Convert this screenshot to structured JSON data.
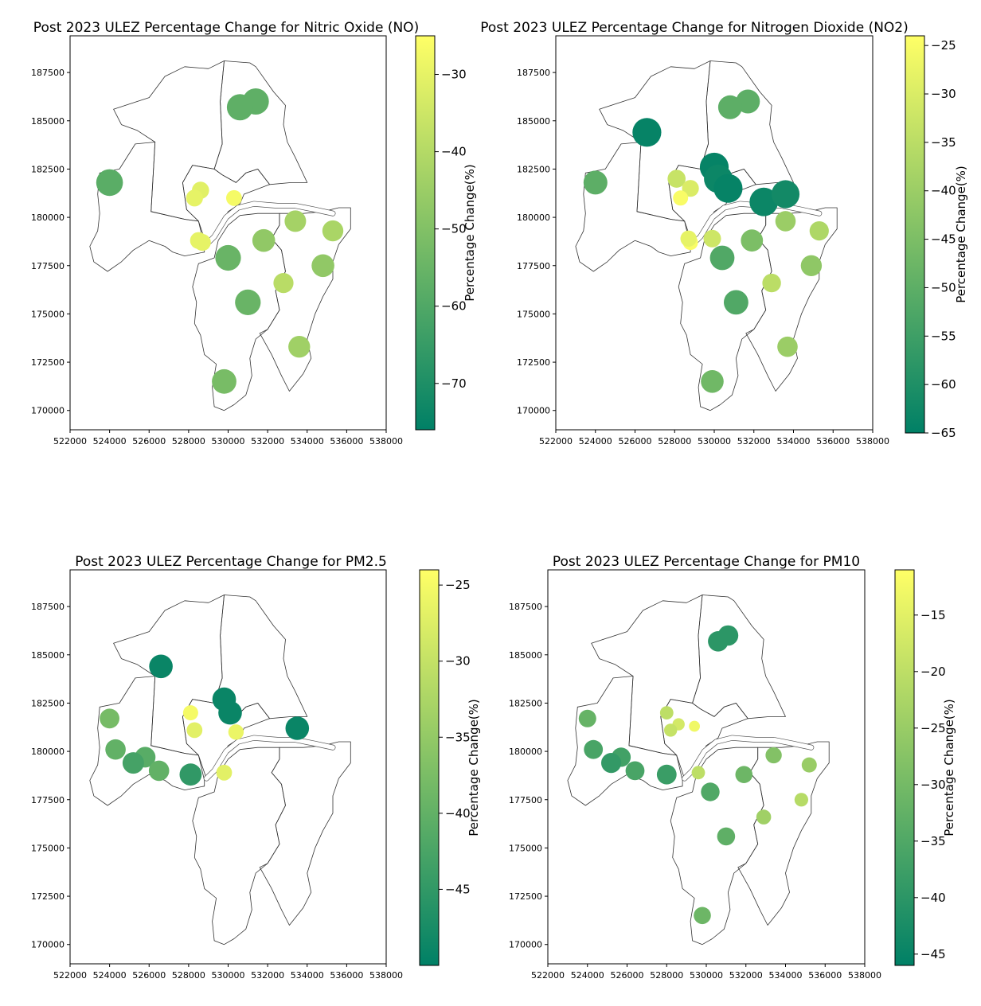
{
  "chart_data": [
    {
      "type": "scatter",
      "title": "Post 2023 ULEZ Percentage Change for Nitric Oxide (NO)",
      "xlabel": "",
      "ylabel": "",
      "xlim": [
        522000,
        538000
      ],
      "ylim": [
        169000,
        189400
      ],
      "xticks": [
        522000,
        524000,
        526000,
        528000,
        530000,
        532000,
        534000,
        536000,
        538000
      ],
      "yticks": [
        170000,
        172500,
        175000,
        177500,
        180000,
        182500,
        185000,
        187500
      ],
      "colorbar": {
        "label": "Percentage Change(%)",
        "vmin": -76,
        "vmax": -25,
        "ticks": [
          -30,
          -40,
          -50,
          -60,
          -70
        ]
      },
      "points": [
        {
          "x": 531400,
          "y": 186000,
          "value": -57
        },
        {
          "x": 530600,
          "y": 185700,
          "value": -57
        },
        {
          "x": 524000,
          "y": 181800,
          "value": -58
        },
        {
          "x": 528600,
          "y": 181400,
          "value": -31
        },
        {
          "x": 528300,
          "y": 181000,
          "value": -30
        },
        {
          "x": 530300,
          "y": 181000,
          "value": -27
        },
        {
          "x": 528500,
          "y": 178800,
          "value": -30
        },
        {
          "x": 528700,
          "y": 178700,
          "value": -30
        },
        {
          "x": 533400,
          "y": 179800,
          "value": -43
        },
        {
          "x": 535300,
          "y": 179300,
          "value": -42
        },
        {
          "x": 531800,
          "y": 178800,
          "value": -47
        },
        {
          "x": 530000,
          "y": 177900,
          "value": -55
        },
        {
          "x": 534800,
          "y": 177500,
          "value": -47
        },
        {
          "x": 532800,
          "y": 176600,
          "value": -39
        },
        {
          "x": 531000,
          "y": 175600,
          "value": -55
        },
        {
          "x": 533600,
          "y": 173300,
          "value": -44
        },
        {
          "x": 529800,
          "y": 171500,
          "value": -52
        }
      ]
    },
    {
      "type": "scatter",
      "title": "Post 2023 ULEZ Percentage Change for Nitrogen Dioxide (NO2)",
      "xlabel": "",
      "ylabel": "",
      "xlim": [
        522000,
        538000
      ],
      "ylim": [
        169000,
        189400
      ],
      "xticks": [
        522000,
        524000,
        526000,
        528000,
        530000,
        532000,
        534000,
        536000,
        538000
      ],
      "yticks": [
        170000,
        172500,
        175000,
        177500,
        180000,
        182500,
        185000,
        187500
      ],
      "colorbar": {
        "label": "Percentage Change(%)",
        "vmin": -65,
        "vmax": -24,
        "ticks": [
          -25,
          -30,
          -35,
          -40,
          -45,
          -50,
          -55,
          -60,
          -65
        ]
      },
      "points": [
        {
          "x": 531700,
          "y": 186000,
          "value": -50
        },
        {
          "x": 530800,
          "y": 185700,
          "value": -50
        },
        {
          "x": 526600,
          "y": 184400,
          "value": -64
        },
        {
          "x": 524000,
          "y": 181800,
          "value": -50
        },
        {
          "x": 530000,
          "y": 182600,
          "value": -64
        },
        {
          "x": 530200,
          "y": 182000,
          "value": -63
        },
        {
          "x": 530700,
          "y": 181500,
          "value": -64
        },
        {
          "x": 528100,
          "y": 182000,
          "value": -33
        },
        {
          "x": 528800,
          "y": 181500,
          "value": -30
        },
        {
          "x": 528300,
          "y": 181000,
          "value": -25
        },
        {
          "x": 532500,
          "y": 180800,
          "value": -63
        },
        {
          "x": 533600,
          "y": 181200,
          "value": -62
        },
        {
          "x": 533600,
          "y": 179800,
          "value": -40
        },
        {
          "x": 535300,
          "y": 179300,
          "value": -37
        },
        {
          "x": 528800,
          "y": 178700,
          "value": -25
        },
        {
          "x": 528700,
          "y": 178900,
          "value": -28
        },
        {
          "x": 529900,
          "y": 178900,
          "value": -32
        },
        {
          "x": 531900,
          "y": 178800,
          "value": -45
        },
        {
          "x": 530400,
          "y": 177900,
          "value": -52
        },
        {
          "x": 534900,
          "y": 177500,
          "value": -42
        },
        {
          "x": 532900,
          "y": 176600,
          "value": -35
        },
        {
          "x": 531100,
          "y": 175600,
          "value": -52
        },
        {
          "x": 533700,
          "y": 173300,
          "value": -40
        },
        {
          "x": 529900,
          "y": 171500,
          "value": -47
        }
      ]
    },
    {
      "type": "scatter",
      "title": "Post 2023 ULEZ Percentage Change for PM2.5",
      "xlabel": "",
      "ylabel": "",
      "xlim": [
        522000,
        538000
      ],
      "ylim": [
        169000,
        189400
      ],
      "xticks": [
        522000,
        524000,
        526000,
        528000,
        530000,
        532000,
        534000,
        536000,
        538000
      ],
      "yticks": [
        170000,
        172500,
        175000,
        177500,
        180000,
        182500,
        185000,
        187500
      ],
      "colorbar": {
        "label": "Percentage Change(%)",
        "vmin": -50,
        "vmax": -24,
        "ticks": [
          -25,
          -30,
          -35,
          -40,
          -45
        ]
      },
      "points": [
        {
          "x": 526600,
          "y": 184400,
          "value": -49
        },
        {
          "x": 524000,
          "y": 181700,
          "value": -38
        },
        {
          "x": 529800,
          "y": 182700,
          "value": -49
        },
        {
          "x": 530100,
          "y": 182000,
          "value": -49
        },
        {
          "x": 528100,
          "y": 182000,
          "value": -25
        },
        {
          "x": 528300,
          "y": 181100,
          "value": -27
        },
        {
          "x": 530400,
          "y": 181000,
          "value": -26
        },
        {
          "x": 533500,
          "y": 181200,
          "value": -49
        },
        {
          "x": 524300,
          "y": 180100,
          "value": -40
        },
        {
          "x": 525800,
          "y": 179700,
          "value": -41
        },
        {
          "x": 525200,
          "y": 179400,
          "value": -43
        },
        {
          "x": 526500,
          "y": 179000,
          "value": -40
        },
        {
          "x": 528100,
          "y": 178800,
          "value": -45
        },
        {
          "x": 529800,
          "y": 178900,
          "value": -27
        }
      ]
    },
    {
      "type": "scatter",
      "title": "Post 2023 ULEZ Percentage Change for PM10",
      "xlabel": "",
      "ylabel": "",
      "xlim": [
        522000,
        538000
      ],
      "ylim": [
        169000,
        189400
      ],
      "xticks": [
        522000,
        524000,
        526000,
        528000,
        530000,
        532000,
        534000,
        536000,
        538000
      ],
      "yticks": [
        170000,
        172500,
        175000,
        177500,
        180000,
        182500,
        185000,
        187500
      ],
      "colorbar": {
        "label": "Percentage Change(%)",
        "vmin": -46,
        "vmax": -11,
        "ticks": [
          -15,
          -20,
          -25,
          -30,
          -35,
          -40,
          -45
        ]
      },
      "points": [
        {
          "x": 531100,
          "y": 186000,
          "value": -40
        },
        {
          "x": 530600,
          "y": 185700,
          "value": -40
        },
        {
          "x": 524000,
          "y": 181700,
          "value": -32
        },
        {
          "x": 528000,
          "y": 182000,
          "value": -20
        },
        {
          "x": 528600,
          "y": 181400,
          "value": -17
        },
        {
          "x": 528200,
          "y": 181100,
          "value": -19
        },
        {
          "x": 529400,
          "y": 181300,
          "value": -13
        },
        {
          "x": 524300,
          "y": 180100,
          "value": -36
        },
        {
          "x": 525700,
          "y": 179700,
          "value": -37
        },
        {
          "x": 525200,
          "y": 179400,
          "value": -39
        },
        {
          "x": 526400,
          "y": 179000,
          "value": -36
        },
        {
          "x": 528000,
          "y": 178800,
          "value": -38
        },
        {
          "x": 529600,
          "y": 178900,
          "value": -20
        },
        {
          "x": 533400,
          "y": 179800,
          "value": -28
        },
        {
          "x": 535200,
          "y": 179300,
          "value": -25
        },
        {
          "x": 531900,
          "y": 178800,
          "value": -31
        },
        {
          "x": 530200,
          "y": 177900,
          "value": -35
        },
        {
          "x": 534800,
          "y": 177500,
          "value": -21
        },
        {
          "x": 532900,
          "y": 176600,
          "value": -24
        },
        {
          "x": 531000,
          "y": 175600,
          "value": -33
        },
        {
          "x": 529800,
          "y": 171500,
          "value": -31
        }
      ]
    }
  ]
}
